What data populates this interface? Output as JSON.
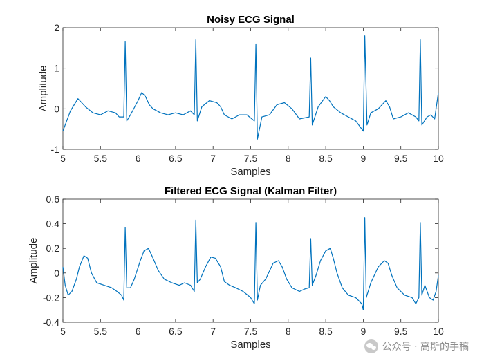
{
  "chart_data": [
    {
      "type": "line",
      "title": "Noisy ECG Signal",
      "xlabel": "Samples",
      "ylabel": "Amplitude",
      "xlim": [
        5,
        10
      ],
      "ylim": [
        -1,
        2
      ],
      "xticks": [
        "5",
        "5.5",
        "6",
        "6.5",
        "7",
        "7.5",
        "8",
        "8.5",
        "9",
        "9.5",
        "10"
      ],
      "yticks": [
        "-1",
        "0",
        "1",
        "2"
      ],
      "grid": false,
      "series": [
        {
          "color": "#0072BD",
          "x": [
            5.0,
            5.1,
            5.15,
            5.2,
            5.25,
            5.3,
            5.4,
            5.5,
            5.6,
            5.7,
            5.75,
            5.81,
            5.83,
            5.85,
            5.9,
            6.0,
            6.05,
            6.1,
            6.15,
            6.2,
            6.3,
            6.4,
            6.5,
            6.6,
            6.7,
            6.75,
            6.77,
            6.79,
            6.85,
            6.95,
            7.05,
            7.1,
            7.15,
            7.25,
            7.35,
            7.45,
            7.55,
            7.57,
            7.59,
            7.65,
            7.75,
            7.85,
            7.95,
            8.05,
            8.15,
            8.28,
            8.3,
            8.32,
            8.4,
            8.5,
            8.55,
            8.6,
            8.7,
            8.8,
            8.9,
            9.0,
            9.02,
            9.05,
            9.1,
            9.2,
            9.3,
            9.35,
            9.4,
            9.5,
            9.6,
            9.7,
            9.74,
            9.76,
            9.78,
            9.85,
            9.9,
            9.95,
            10.0
          ],
          "y": [
            -0.55,
            -0.05,
            0.1,
            0.25,
            0.15,
            0.05,
            -0.1,
            -0.15,
            -0.05,
            -0.1,
            -0.2,
            -0.2,
            1.65,
            -0.3,
            -0.15,
            0.2,
            0.4,
            0.3,
            0.1,
            0.0,
            -0.1,
            -0.15,
            -0.1,
            -0.15,
            -0.05,
            -0.15,
            1.7,
            -0.3,
            0.05,
            0.2,
            0.15,
            0.05,
            -0.15,
            -0.25,
            -0.15,
            -0.15,
            -0.3,
            1.6,
            -0.75,
            -0.2,
            -0.15,
            0.1,
            0.15,
            0.0,
            -0.25,
            -0.2,
            1.25,
            -0.4,
            0.05,
            0.3,
            0.2,
            0.05,
            -0.1,
            -0.2,
            -0.3,
            -0.55,
            1.8,
            -0.4,
            -0.1,
            0.0,
            0.2,
            0.05,
            -0.25,
            -0.2,
            -0.1,
            -0.2,
            -0.3,
            1.7,
            -0.4,
            -0.2,
            -0.15,
            -0.25,
            0.4
          ]
        }
      ]
    },
    {
      "type": "line",
      "title": "Filtered ECG Signal (Kalman Filter)",
      "xlabel": "Samples",
      "ylabel": "Amplitude",
      "xlim": [
        5,
        10
      ],
      "ylim": [
        -0.4,
        0.6
      ],
      "xticks": [
        "5",
        "5.5",
        "6",
        "6.5",
        "7",
        "7.5",
        "8",
        "8.5",
        "9",
        "9.5",
        "10"
      ],
      "yticks": [
        "-0.4",
        "-0.2",
        "0",
        "0.2",
        "0.4",
        "0.6"
      ],
      "grid": false,
      "series": [
        {
          "color": "#0072BD",
          "x": [
            5.0,
            5.03,
            5.07,
            5.12,
            5.18,
            5.22,
            5.28,
            5.33,
            5.38,
            5.45,
            5.55,
            5.65,
            5.72,
            5.78,
            5.81,
            5.83,
            5.85,
            5.9,
            5.95,
            6.03,
            6.08,
            6.14,
            6.2,
            6.27,
            6.35,
            6.45,
            6.55,
            6.62,
            6.7,
            6.75,
            6.77,
            6.79,
            6.83,
            6.9,
            6.97,
            7.03,
            7.1,
            7.15,
            7.22,
            7.3,
            7.4,
            7.5,
            7.55,
            7.57,
            7.59,
            7.63,
            7.7,
            7.8,
            7.87,
            7.92,
            7.98,
            8.05,
            8.15,
            8.22,
            8.28,
            8.3,
            8.32,
            8.37,
            8.43,
            8.5,
            8.56,
            8.6,
            8.65,
            8.72,
            8.8,
            8.9,
            8.98,
            9.0,
            9.02,
            9.04,
            9.1,
            9.2,
            9.28,
            9.33,
            9.38,
            9.45,
            9.55,
            9.65,
            9.7,
            9.74,
            9.76,
            9.78,
            9.82,
            9.88,
            9.93,
            9.97,
            10.0
          ],
          "y": [
            0.05,
            -0.1,
            -0.18,
            -0.15,
            -0.05,
            0.05,
            0.14,
            0.12,
            0.0,
            -0.08,
            -0.1,
            -0.12,
            -0.15,
            -0.18,
            -0.22,
            0.37,
            -0.12,
            -0.12,
            -0.05,
            0.1,
            0.18,
            0.2,
            0.12,
            0.02,
            -0.05,
            -0.08,
            -0.1,
            -0.08,
            -0.1,
            -0.15,
            0.43,
            -0.08,
            -0.05,
            0.05,
            0.13,
            0.12,
            0.05,
            -0.07,
            -0.1,
            -0.12,
            -0.15,
            -0.2,
            -0.25,
            0.41,
            -0.22,
            -0.1,
            -0.05,
            0.08,
            0.1,
            0.05,
            -0.05,
            -0.12,
            -0.15,
            -0.13,
            -0.12,
            0.28,
            -0.1,
            -0.02,
            0.1,
            0.18,
            0.2,
            0.12,
            0.0,
            -0.12,
            -0.18,
            -0.2,
            -0.25,
            -0.3,
            0.45,
            -0.2,
            -0.08,
            0.05,
            0.1,
            0.08,
            -0.02,
            -0.12,
            -0.18,
            -0.2,
            -0.25,
            -0.2,
            0.41,
            -0.18,
            -0.1,
            -0.2,
            -0.22,
            -0.15,
            -0.02
          ]
        }
      ]
    }
  ],
  "watermark": {
    "icon": "wechat-icon",
    "text": "公众号 · 高斯的手稿"
  }
}
